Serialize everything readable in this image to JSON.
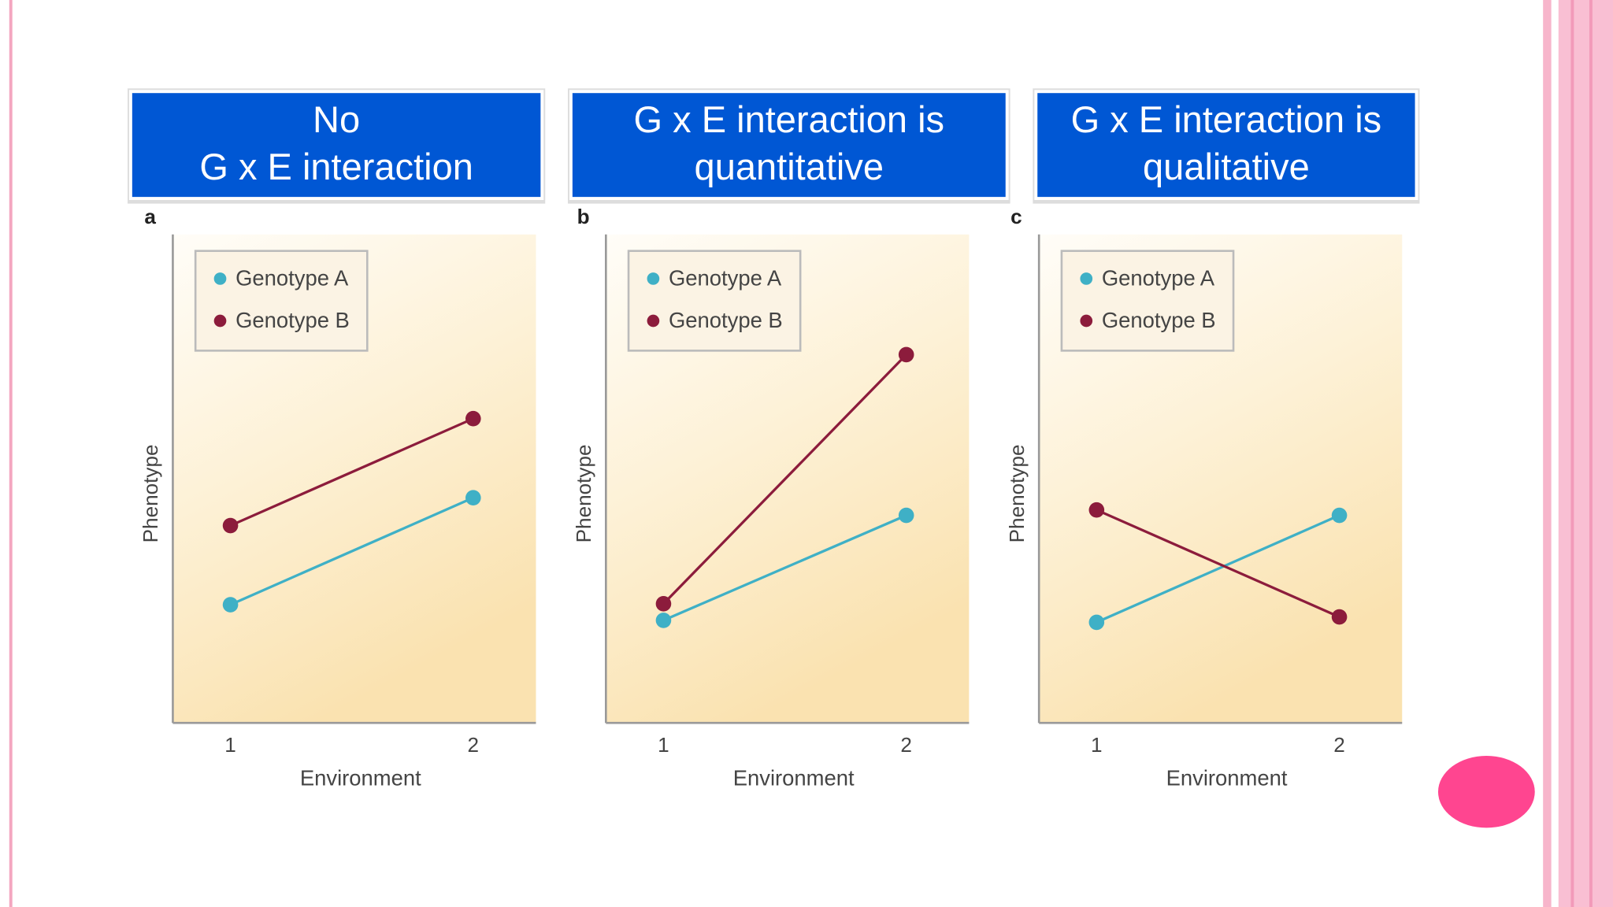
{
  "chart_data": [
    {
      "type": "line",
      "title": [
        "No",
        "G x E interaction"
      ],
      "panel": "a",
      "x_label": "Environment",
      "y_label": "Phenotype",
      "categories": [
        "1",
        "2"
      ],
      "ylim": [
        0,
        10
      ],
      "legend": "upper left",
      "series": [
        {
          "name": "Genotype A",
          "color": "#3fb0c6",
          "values": [
            2.42,
            4.61
          ]
        },
        {
          "name": "Genotype B",
          "color": "#8c1c3c",
          "values": [
            4.04,
            6.23
          ]
        }
      ]
    },
    {
      "type": "line",
      "title": [
        "G x E interaction is",
        "quantitative"
      ],
      "panel": "b",
      "x_label": "Environment",
      "y_label": "Phenotype",
      "categories": [
        "1",
        "2"
      ],
      "ylim": [
        0,
        10
      ],
      "legend": "upper left",
      "series": [
        {
          "name": "Genotype A",
          "color": "#3fb0c6",
          "values": [
            2.1,
            4.25
          ]
        },
        {
          "name": "Genotype B",
          "color": "#8c1c3c",
          "values": [
            2.44,
            7.54
          ]
        }
      ]
    },
    {
      "type": "line",
      "title": [
        "G x E interaction is",
        "qualitative"
      ],
      "panel": "c",
      "x_label": "Environment",
      "y_label": "Phenotype",
      "categories": [
        "1",
        "2"
      ],
      "ylim": [
        0,
        10
      ],
      "legend": "upper left",
      "series": [
        {
          "name": "Genotype A",
          "color": "#3fb0c6",
          "values": [
            2.06,
            4.25
          ]
        },
        {
          "name": "Genotype B",
          "color": "#8c1c3c",
          "values": [
            4.36,
            2.17
          ]
        }
      ]
    }
  ]
}
